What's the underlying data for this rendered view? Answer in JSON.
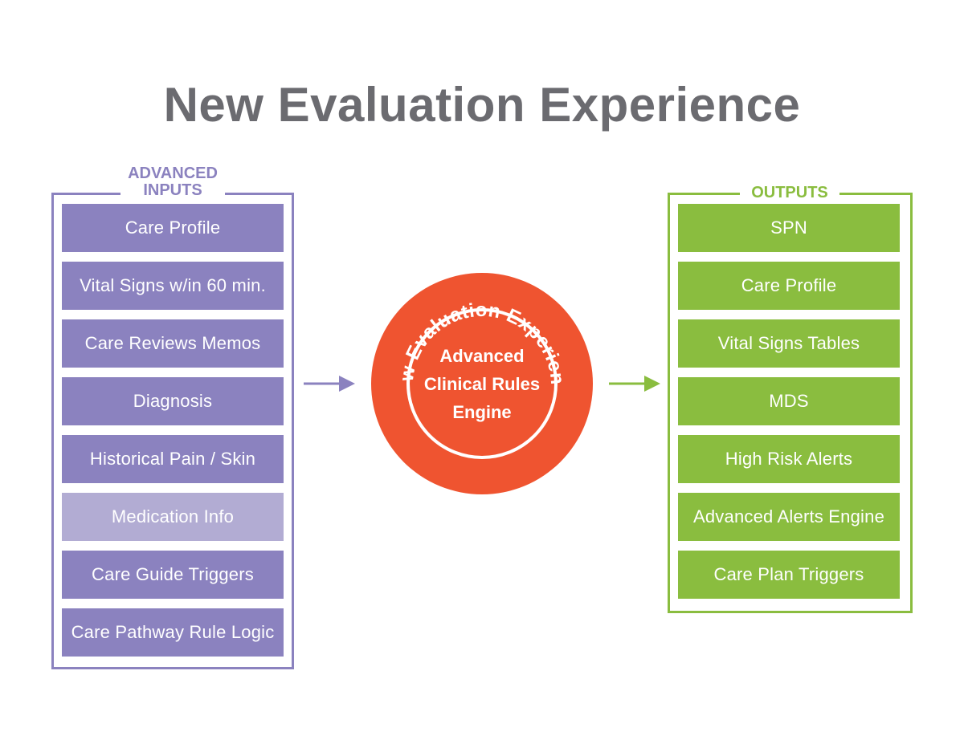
{
  "title": "New Evaluation Experience",
  "colors": {
    "title": "#6b6b70",
    "inputs_accent": "#8b82bf",
    "inputs_highlight": "#b2acd3",
    "outputs_accent": "#8abd3f",
    "engine": "#ef5430"
  },
  "inputs": {
    "label_line1": "ADVANCED",
    "label_line2": "INPUTS",
    "items": [
      "Care Profile",
      "Vital Signs w/in 60 min.",
      "Care Reviews Memos",
      "Diagnosis",
      "Historical Pain / Skin",
      "Medication Info",
      "Care Guide Triggers",
      "Care Pathway Rule Logic"
    ]
  },
  "engine": {
    "ring_text": "New Evaluation Experience",
    "line1": "Advanced",
    "line2": "Clinical Rules",
    "line3": "Engine"
  },
  "outputs": {
    "label": "OUTPUTS",
    "items": [
      "SPN",
      "Care Profile",
      "Vital Signs Tables",
      "MDS",
      "High Risk Alerts",
      "Advanced Alerts Engine",
      "Care Plan Triggers"
    ]
  }
}
